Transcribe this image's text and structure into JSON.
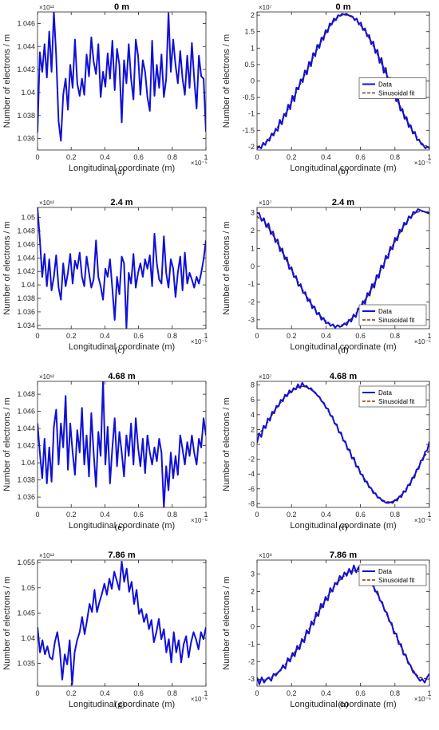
{
  "chart_data": [
    {
      "type": "line",
      "panel": "(a)",
      "title": "0 m",
      "xlabel": "Longitudinal coordinate (m)",
      "ylabel": "Number of electrons / m",
      "x_exponent": "×10⁻⁵",
      "y_exponent": "×10¹²",
      "xlim": [
        0,
        1
      ],
      "ylim": [
        1.035,
        1.047
      ],
      "xticks": [
        "0",
        "0.2",
        "0.4",
        "0.6",
        "0.8",
        "1"
      ],
      "yticks": [
        1.036,
        1.038,
        1.04,
        1.042,
        1.044,
        1.046
      ],
      "ytick_labels": [
        "1.036",
        "1.038",
        "1.04",
        "1.042",
        "1.044",
        "1.046"
      ],
      "grid": false,
      "series": [
        {
          "color": "#1010d8",
          "values": [
            1.0365,
            1.0435,
            1.0418,
            1.0442,
            1.0413,
            1.0453,
            1.0418,
            1.047,
            1.0432,
            1.0375,
            1.0358,
            1.0398,
            1.0412,
            1.0385,
            1.0424,
            1.0404,
            1.0446,
            1.0408,
            1.0397,
            1.0412,
            1.0398,
            1.0433,
            1.0414,
            1.0448,
            1.0427,
            1.0416,
            1.0442,
            1.0396,
            1.0418,
            1.0405,
            1.0434,
            1.0412,
            1.0445,
            1.0402,
            1.0438,
            1.0424,
            1.0374,
            1.0428,
            1.0408,
            1.0442,
            1.0412,
            1.0394,
            1.0446,
            1.0432,
            1.0398,
            1.0428,
            1.0418,
            1.0396,
            1.0384,
            1.0445,
            1.0397,
            1.0424,
            1.0404,
            1.0433,
            1.0396,
            1.0412,
            1.0469,
            1.0418,
            1.0446,
            1.0424,
            1.0408,
            1.0436,
            1.0412,
            1.0398,
            1.0432,
            1.0404,
            1.0443,
            1.0412,
            1.0386,
            1.0432,
            1.0414,
            1.0412,
            1.0366
          ]
        }
      ]
    },
    {
      "type": "line",
      "panel": "(b)",
      "title": "0 m",
      "xlabel": "Longitudinal coordinate (m)",
      "ylabel": "Number of electrons / m",
      "x_exponent": "×10⁻⁵",
      "y_exponent": "×10⁷",
      "xlim": [
        0,
        1
      ],
      "ylim": [
        -2.1,
        2.1
      ],
      "xticks": [
        "0",
        "0.2",
        "0.4",
        "0.6",
        "0.8",
        "1"
      ],
      "yticks": [
        -2,
        -1.5,
        -1,
        -0.5,
        0,
        0.5,
        1,
        1.5,
        2
      ],
      "ytick_labels": [
        "-2",
        "-1.5",
        "-1",
        "-0.5",
        "0",
        "0.5",
        "1",
        "1.5",
        "2"
      ],
      "grid": false,
      "legend": {
        "position": "right-middle",
        "entries": [
          "Data",
          "Sinusoidal fit"
        ]
      },
      "fit": {
        "amplitude": 2.05,
        "phase": "cos",
        "sign": -1,
        "offset": 0
      },
      "series": [
        {
          "name": "Data",
          "color": "#1010d8",
          "values": [
            -2.05,
            -2.0,
            -2.05,
            -1.88,
            -1.95,
            -1.78,
            -1.82,
            -1.6,
            -1.66,
            -1.45,
            -1.52,
            -1.18,
            -1.32,
            -1.0,
            -1.08,
            -0.72,
            -0.86,
            -0.45,
            -0.62,
            -0.2,
            -0.26,
            0.05,
            -0.04,
            0.32,
            0.2,
            0.58,
            0.45,
            0.85,
            0.75,
            1.1,
            1.0,
            1.32,
            1.25,
            1.55,
            1.48,
            1.75,
            1.72,
            1.9,
            1.85,
            2.0,
            1.98,
            2.05,
            2.02,
            2.05,
            2.0,
            1.98,
            1.96,
            1.85,
            1.9,
            1.72,
            1.78,
            1.55,
            1.6,
            1.36,
            1.4,
            1.12,
            1.2,
            0.85,
            0.95,
            0.55,
            0.7,
            0.25,
            0.4,
            -0.05,
            0.1,
            -0.35,
            -0.22,
            -0.62,
            -0.55,
            -0.9,
            -0.85,
            -1.15,
            -1.1,
            -1.4,
            -1.35,
            -1.6,
            -1.55,
            -1.8,
            -1.78,
            -1.92,
            -1.95,
            -2.05,
            -2.0,
            -2.05
          ]
        }
      ]
    },
    {
      "type": "line",
      "panel": "(c)",
      "title": "2.4 m",
      "xlabel": "Longitudinal coordinate (m)",
      "ylabel": "Number of electrons / m",
      "x_exponent": "×10⁻⁵",
      "y_exponent": "×10¹²",
      "xlim": [
        0,
        1
      ],
      "ylim": [
        1.0335,
        1.0515
      ],
      "xticks": [
        "0",
        "0.2",
        "0.4",
        "0.6",
        "0.8",
        "1"
      ],
      "yticks": [
        1.034,
        1.036,
        1.038,
        1.04,
        1.042,
        1.044,
        1.046,
        1.048,
        1.05
      ],
      "ytick_labels": [
        "1.034",
        "1.036",
        "1.038",
        "1.04",
        "1.042",
        "1.044",
        "1.046",
        "1.048",
        "1.05"
      ],
      "grid": false,
      "series": [
        {
          "color": "#1010d8",
          "values": [
            1.0515,
            1.0468,
            1.0412,
            1.0446,
            1.0398,
            1.0438,
            1.0392,
            1.0412,
            1.0444,
            1.0396,
            1.0378,
            1.0432,
            1.0398,
            1.0418,
            1.0446,
            1.0402,
            1.0436,
            1.0424,
            1.0448,
            1.0412,
            1.0398,
            1.0442,
            1.0418,
            1.0396,
            1.0408,
            1.0466,
            1.0412,
            1.0398,
            1.0378,
            1.0424,
            1.0412,
            1.0438,
            1.0394,
            1.0348,
            1.0412,
            1.0386,
            1.0442,
            1.0432,
            1.0336,
            1.0418,
            1.0402,
            1.0446,
            1.0396,
            1.0418,
            1.0432,
            1.0412,
            1.0438,
            1.0424,
            1.0444,
            1.0398,
            1.0476,
            1.0432,
            1.0408,
            1.0402,
            1.0472,
            1.0418,
            1.0396,
            1.0438,
            1.0424,
            1.0382,
            1.0418,
            1.0442,
            1.0392,
            1.0448,
            1.0402,
            1.0418,
            1.0408,
            1.0396,
            1.0412,
            1.0402,
            1.0418,
            1.0438,
            1.0466
          ]
        }
      ]
    },
    {
      "type": "line",
      "panel": "(d)",
      "title": "2.4 m",
      "xlabel": "Longitudinal coordinate (m)",
      "ylabel": "Number of electrons / m",
      "x_exponent": "×10⁻⁵",
      "y_exponent": "×10⁷",
      "xlim": [
        0,
        1
      ],
      "ylim": [
        -3.5,
        3.3
      ],
      "xticks": [
        "0",
        "0.2",
        "0.4",
        "0.6",
        "0.8",
        "1"
      ],
      "yticks": [
        -3,
        -2,
        -1,
        0,
        1,
        2,
        3
      ],
      "ytick_labels": [
        "-3",
        "-2",
        "-1",
        "0",
        "1",
        "2",
        "3"
      ],
      "grid": false,
      "legend": {
        "position": "bottom-right",
        "entries": [
          "Data",
          "Sinusoidal fit"
        ]
      },
      "series": [
        {
          "name": "Data",
          "color": "#1010d8",
          "values": [
            3.0,
            2.95,
            2.55,
            2.7,
            2.2,
            2.4,
            1.8,
            1.95,
            1.35,
            1.5,
            0.85,
            1.0,
            0.4,
            0.5,
            -0.15,
            -0.05,
            -0.6,
            -0.55,
            -1.1,
            -1.0,
            -1.5,
            -1.45,
            -1.95,
            -1.85,
            -2.35,
            -2.25,
            -2.7,
            -2.6,
            -3.0,
            -2.9,
            -3.2,
            -3.15,
            -3.35,
            -3.25,
            -3.45,
            -3.3,
            -3.4,
            -3.35,
            -3.2,
            -3.3,
            -3.0,
            -3.1,
            -2.7,
            -2.85,
            -2.35,
            -2.5,
            -1.95,
            -2.1,
            -1.5,
            -1.65,
            -1.0,
            -1.2,
            -0.5,
            -0.65,
            0.05,
            -0.1,
            0.6,
            0.45,
            1.1,
            0.95,
            1.6,
            1.45,
            2.05,
            1.95,
            2.45,
            2.35,
            2.8,
            2.7,
            3.05,
            3.0,
            3.2,
            3.15,
            3.1,
            3.05,
            3.0,
            2.95
          ]
        }
      ]
    },
    {
      "type": "line",
      "panel": "(e)",
      "title": "4.68 m",
      "xlabel": "Longitudinal coordinate (m)",
      "ylabel": "Number of electrons / m",
      "x_exponent": "×10⁻⁵",
      "y_exponent": "×10¹²",
      "xlim": [
        0,
        1
      ],
      "ylim": [
        1.0348,
        1.0495
      ],
      "xticks": [
        "0",
        "0.2",
        "0.4",
        "0.6",
        "0.8",
        "1"
      ],
      "yticks": [
        1.036,
        1.038,
        1.04,
        1.042,
        1.044,
        1.046,
        1.048
      ],
      "ytick_labels": [
        "1.036",
        "1.038",
        "1.04",
        "1.042",
        "1.044",
        "1.046",
        "1.048"
      ],
      "grid": false,
      "series": [
        {
          "color": "#1010d8",
          "values": [
            1.0446,
            1.0412,
            1.0382,
            1.0428,
            1.0376,
            1.0418,
            1.0378,
            1.0442,
            1.0462,
            1.0398,
            1.0446,
            1.0418,
            1.0478,
            1.0392,
            1.0446,
            1.0412,
            1.0386,
            1.0438,
            1.0412,
            1.0464,
            1.0398,
            1.0432,
            1.0384,
            1.0458,
            1.0412,
            1.0372,
            1.0436,
            1.0408,
            1.0496,
            1.0398,
            1.0442,
            1.0376,
            1.0418,
            1.0452,
            1.0396,
            1.0436,
            1.0412,
            1.0384,
            1.0432,
            1.0408,
            1.0446,
            1.0398,
            1.0452,
            1.0418,
            1.0396,
            1.0428,
            1.0388,
            1.0432,
            1.0412,
            1.0398,
            1.0418,
            1.0402,
            1.0428,
            1.0412,
            1.0348,
            1.0396,
            1.0368,
            1.0412,
            1.0382,
            1.0408,
            1.0386,
            1.0432,
            1.0416,
            1.0398,
            1.0424,
            1.0408,
            1.0432,
            1.0412,
            1.0398,
            1.0428,
            1.0418,
            1.0452,
            1.0432
          ]
        }
      ]
    },
    {
      "type": "line",
      "panel": "(f)",
      "title": "4.68 m",
      "xlabel": "Longitudinal coordinate (m)",
      "ylabel": "Number of electrons / m",
      "x_exponent": "×10⁻⁵",
      "y_exponent": "×10⁷",
      "xlim": [
        0,
        1
      ],
      "ylim": [
        -8.5,
        8.5
      ],
      "xticks": [
        "0",
        "0.2",
        "0.4",
        "0.6",
        "0.8",
        "1"
      ],
      "yticks": [
        -8,
        -6,
        -4,
        -2,
        0,
        2,
        4,
        6,
        8
      ],
      "ytick_labels": [
        "-8",
        "-6",
        "-4",
        "-2",
        "0",
        "2",
        "4",
        "6",
        "8"
      ],
      "grid": false,
      "legend": {
        "position": "top-right",
        "entries": [
          "Data",
          "Sinusoidal fit"
        ]
      },
      "series": [
        {
          "name": "Data",
          "color": "#1010d8",
          "values": [
            0.2,
            1.5,
            1.0,
            2.5,
            2.2,
            3.5,
            3.2,
            4.4,
            4.2,
            5.2,
            5.1,
            6.0,
            5.8,
            6.7,
            6.5,
            7.3,
            7.0,
            7.6,
            7.4,
            8.1,
            7.6,
            8.3,
            7.8,
            7.9,
            7.5,
            7.6,
            7.2,
            7.0,
            6.6,
            6.4,
            5.8,
            5.6,
            4.9,
            4.8,
            3.9,
            3.8,
            2.8,
            2.7,
            1.6,
            1.6,
            0.5,
            0.4,
            -0.7,
            -0.7,
            -1.9,
            -1.8,
            -3.0,
            -3.0,
            -4.0,
            -4.1,
            -5.0,
            -5.0,
            -5.8,
            -5.9,
            -6.6,
            -6.6,
            -7.2,
            -7.2,
            -7.6,
            -7.7,
            -7.9,
            -7.9,
            -7.8,
            -7.9,
            -7.5,
            -7.6,
            -7.0,
            -7.1,
            -6.3,
            -6.4,
            -5.5,
            -5.5,
            -4.5,
            -4.5,
            -3.4,
            -3.3,
            -2.2,
            -2.1,
            -1.0,
            -0.8,
            0.4
          ]
        }
      ]
    },
    {
      "type": "line",
      "panel": "(g)",
      "title": "7.86 m",
      "xlabel": "Longitudinal coordinate (m)",
      "ylabel": "Number of electrons / m",
      "x_exponent": "×10⁻⁵",
      "y_exponent": "×10¹²",
      "xlim": [
        0,
        1
      ],
      "ylim": [
        1.0305,
        1.0555
      ],
      "xticks": [
        "0",
        "0.2",
        "0.4",
        "0.6",
        "0.8",
        "1"
      ],
      "yticks": [
        1.035,
        1.04,
        1.045,
        1.05,
        1.055
      ],
      "ytick_labels": [
        "1.035",
        "1.04",
        "1.045",
        "1.05",
        "1.055"
      ],
      "grid": false,
      "series": [
        {
          "color": "#1010d8",
          "values": [
            1.0422,
            1.0372,
            1.0396,
            1.0368,
            1.0384,
            1.0362,
            1.0358,
            1.0392,
            1.0412,
            1.0378,
            1.0318,
            1.0368,
            1.0348,
            1.0396,
            1.0308,
            1.0372,
            1.0396,
            1.0412,
            1.0442,
            1.0408,
            1.0436,
            1.0468,
            1.0452,
            1.0496,
            1.0452,
            1.0472,
            1.0488,
            1.0508,
            1.0486,
            1.0518,
            1.0498,
            1.0532,
            1.0514,
            1.0496,
            1.0552,
            1.0512,
            1.0538,
            1.0492,
            1.0512,
            1.0468,
            1.0496,
            1.0448,
            1.0458,
            1.0432,
            1.0448,
            1.0418,
            1.0436,
            1.0392,
            1.0412,
            1.0438,
            1.0398,
            1.0418,
            1.0372,
            1.0398,
            1.0352,
            1.0412,
            1.0372,
            1.0396,
            1.0352,
            1.0388,
            1.0404,
            1.0362,
            1.0392,
            1.0412,
            1.0398,
            1.0378,
            1.0412,
            1.0398,
            1.0422
          ]
        }
      ]
    },
    {
      "type": "line",
      "panel": "(h)",
      "title": "7.86 m",
      "xlabel": "Longitudinal coordinate (m)",
      "ylabel": "Number of electrons / m",
      "x_exponent": "×10⁻⁵",
      "y_exponent": "×10⁸",
      "xlim": [
        0,
        1
      ],
      "ylim": [
        -3.4,
        3.8
      ],
      "xticks": [
        "0",
        "0.2",
        "0.4",
        "0.6",
        "0.8",
        "1"
      ],
      "yticks": [
        -3,
        -2,
        -1,
        0,
        1,
        2,
        3
      ],
      "ytick_labels": [
        "-3",
        "-2",
        "-1",
        "0",
        "1",
        "2",
        "3"
      ],
      "grid": false,
      "legend": {
        "position": "top-right",
        "entries": [
          "Data",
          "Sinusoidal fit"
        ]
      },
      "series": [
        {
          "name": "Data",
          "color": "#1010d8",
          "values": [
            -2.9,
            -3.3,
            -2.9,
            -3.2,
            -3.0,
            -2.9,
            -3.1,
            -2.7,
            -2.8,
            -2.6,
            -2.5,
            -2.2,
            -2.4,
            -1.8,
            -2.0,
            -1.5,
            -1.7,
            -1.1,
            -1.3,
            -0.7,
            -0.9,
            -0.2,
            -0.4,
            0.3,
            0.1,
            0.8,
            0.6,
            1.3,
            1.1,
            1.7,
            1.5,
            2.2,
            2.0,
            2.5,
            2.4,
            2.9,
            2.7,
            3.1,
            2.9,
            3.3,
            3.0,
            3.5,
            3.1,
            3.4,
            3.0,
            3.2,
            2.8,
            2.9,
            2.5,
            2.5,
            2.0,
            2.0,
            1.5,
            1.4,
            0.9,
            0.8,
            0.3,
            0.2,
            -0.4,
            -0.4,
            -1.0,
            -1.0,
            -1.6,
            -1.6,
            -2.1,
            -2.2,
            -2.6,
            -2.7,
            -2.9,
            -3.1,
            -3.0,
            -3.2,
            -2.9,
            -2.7
          ]
        }
      ]
    }
  ],
  "captions": [
    "(a)",
    "(b)",
    "(c)",
    "(d)",
    "(e)",
    "(f)",
    "(g)",
    "(h)"
  ],
  "legend_labels": {
    "data": "Data",
    "fit": "Sinusoidal fit"
  },
  "colors": {
    "data": "#1010d8",
    "fit": "#7a3a12",
    "axis": "#262626"
  }
}
